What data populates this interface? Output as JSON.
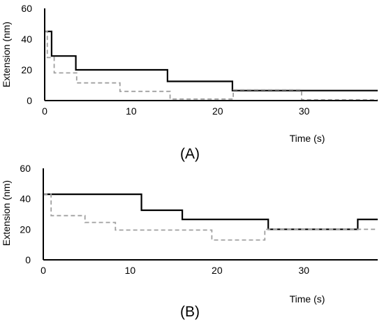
{
  "chart_data": [
    {
      "type": "line",
      "panel_label": "(A)",
      "xlabel": "Time (s)",
      "ylabel": "Extension (nm)",
      "xlim": [
        0,
        38.5
      ],
      "ylim": [
        0,
        60
      ],
      "xticks": [
        0,
        10,
        20,
        30
      ],
      "yticks": [
        0,
        20,
        40,
        60
      ],
      "grid": false,
      "legend": "none",
      "series": [
        {
          "color": "#000000",
          "line_style": "solid",
          "step": true,
          "x": [
            0,
            0.8,
            0.8,
            3.6,
            3.6,
            14.2,
            14.2,
            21.7,
            21.7,
            38.5
          ],
          "y": [
            45,
            45,
            29,
            29,
            20,
            20,
            12.5,
            12.5,
            6.5,
            6.5
          ]
        },
        {
          "color": "#a0a0a0",
          "line_style": "dashed",
          "step": true,
          "x": [
            0,
            0.3,
            0.3,
            1.1,
            1.1,
            3.7,
            3.7,
            8.7,
            8.7,
            14.5,
            14.5,
            21.8,
            21.8,
            29.7,
            29.7,
            38.5
          ],
          "y": [
            45,
            45,
            28,
            28,
            18,
            18,
            11.5,
            11.5,
            6,
            6,
            1,
            1,
            7,
            7,
            0.5,
            0.5
          ]
        }
      ]
    },
    {
      "type": "line",
      "panel_label": "(B)",
      "xlabel": "Time (s)",
      "ylabel": "Extension  (nm)",
      "xlim": [
        0,
        38.5
      ],
      "ylim": [
        0,
        60
      ],
      "xticks": [
        0,
        10,
        20,
        30
      ],
      "yticks": [
        0,
        20,
        40,
        60
      ],
      "grid": false,
      "legend": "none",
      "series": [
        {
          "color": "#000000",
          "line_style": "solid",
          "step": true,
          "x": [
            0,
            11.3,
            11.3,
            16,
            16,
            25.9,
            25.9,
            36.2,
            36.2,
            38.5
          ],
          "y": [
            43,
            43,
            32.5,
            32.5,
            26.5,
            26.5,
            20,
            20,
            26.5,
            26.5
          ]
        },
        {
          "color": "#a0a0a0",
          "line_style": "dashed",
          "step": true,
          "x": [
            0,
            0.9,
            0.9,
            4.8,
            4.8,
            8.3,
            8.3,
            19.4,
            19.4,
            25.5,
            25.5,
            38.5
          ],
          "y": [
            43,
            43,
            29,
            29,
            24.5,
            24.5,
            19.5,
            19.5,
            13,
            13,
            20,
            20
          ]
        }
      ]
    }
  ]
}
